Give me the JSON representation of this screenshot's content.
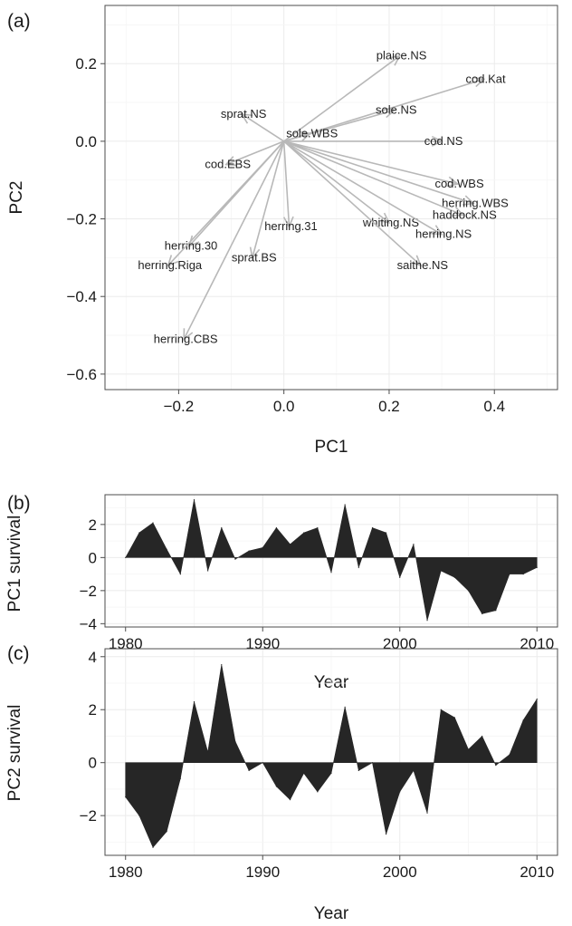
{
  "chart_data": [
    {
      "type": "biplot",
      "panel_label": "(a)",
      "xlabel": "PC1",
      "ylabel": "PC2",
      "xlim": [
        -0.34,
        0.52
      ],
      "ylim": [
        -0.64,
        0.35
      ],
      "xticks": [
        -0.2,
        0.0,
        0.2,
        0.4
      ],
      "xtick_labels": [
        "−0.2",
        "0.0",
        "0.2",
        "0.4"
      ],
      "yticks": [
        -0.6,
        -0.4,
        -0.2,
        0.0,
        0.2
      ],
      "ytick_labels": [
        "−0.6",
        "−0.4",
        "−0.2",
        "0.0",
        "0.2"
      ],
      "grid": true,
      "vectors": [
        {
          "name": "plaice.NS",
          "x": 0.22,
          "y": 0.22
        },
        {
          "name": "cod.Kat",
          "x": 0.38,
          "y": 0.16
        },
        {
          "name": "sole.NS",
          "x": 0.21,
          "y": 0.08
        },
        {
          "name": "sprat.NS",
          "x": -0.08,
          "y": 0.07
        },
        {
          "name": "sole.WBS",
          "x": 0.05,
          "y": 0.02
        },
        {
          "name": "cod.NS",
          "x": 0.3,
          "y": 0.0
        },
        {
          "name": "cod.EBS",
          "x": -0.11,
          "y": -0.06
        },
        {
          "name": "cod.WBS",
          "x": 0.33,
          "y": -0.11
        },
        {
          "name": "herring.WBS",
          "x": 0.36,
          "y": -0.16
        },
        {
          "name": "haddock.NS",
          "x": 0.34,
          "y": -0.19
        },
        {
          "name": "whiting.NS",
          "x": 0.2,
          "y": -0.21
        },
        {
          "name": "herring.NS",
          "x": 0.3,
          "y": -0.24
        },
        {
          "name": "herring.31",
          "x": 0.01,
          "y": -0.22
        },
        {
          "name": "saithe.NS",
          "x": 0.26,
          "y": -0.32
        },
        {
          "name": "herring.30",
          "x": -0.18,
          "y": -0.27
        },
        {
          "name": "herring.Riga",
          "x": -0.22,
          "y": -0.32
        },
        {
          "name": "sprat.BS",
          "x": -0.06,
          "y": -0.3
        },
        {
          "name": "herring.CBS",
          "x": -0.19,
          "y": -0.51
        }
      ]
    },
    {
      "type": "area",
      "panel_label": "(b)",
      "xlabel": "Year",
      "ylabel": "PC1  survival",
      "xlim": [
        1978.5,
        2011.5
      ],
      "ylim": [
        -4.2,
        3.8
      ],
      "xticks": [
        1980,
        1990,
        2000,
        2010
      ],
      "yticks": [
        -4,
        -2,
        0,
        2
      ],
      "ytick_labels": [
        "−4",
        "−2",
        "0",
        "2"
      ],
      "grid": true,
      "x": [
        1980,
        1981,
        1982,
        1983,
        1984,
        1985,
        1986,
        1987,
        1988,
        1989,
        1990,
        1991,
        1992,
        1993,
        1994,
        1995,
        1996,
        1997,
        1998,
        1999,
        2000,
        2001,
        2002,
        2003,
        2004,
        2005,
        2006,
        2007,
        2008,
        2009,
        2010
      ],
      "values": [
        0.0,
        1.5,
        2.1,
        0.5,
        -1.0,
        3.5,
        -0.8,
        1.8,
        -0.1,
        0.4,
        0.6,
        1.8,
        0.8,
        1.5,
        1.8,
        -0.9,
        3.2,
        -0.6,
        1.8,
        1.5,
        -1.2,
        0.8,
        -3.8,
        -0.8,
        -1.2,
        -2.0,
        -3.4,
        -3.2,
        -1.0,
        -1.0,
        -0.6
      ]
    },
    {
      "type": "area",
      "panel_label": "(c)",
      "xlabel": "Year",
      "ylabel": "PC2  survival",
      "xlim": [
        1978.5,
        2011.5
      ],
      "ylim": [
        -3.5,
        4.3
      ],
      "xticks": [
        1980,
        1990,
        2000,
        2010
      ],
      "yticks": [
        -2,
        0,
        2,
        4
      ],
      "ytick_labels": [
        "−2",
        "0",
        "2",
        "4"
      ],
      "grid": true,
      "x": [
        1980,
        1981,
        1982,
        1983,
        1984,
        1985,
        1986,
        1987,
        1988,
        1989,
        1990,
        1991,
        1992,
        1993,
        1994,
        1995,
        1996,
        1997,
        1998,
        1999,
        2000,
        2001,
        2002,
        2003,
        2004,
        2005,
        2006,
        2007,
        2008,
        2009,
        2010
      ],
      "values": [
        -1.3,
        -2.0,
        -3.2,
        -2.6,
        -0.6,
        2.3,
        0.4,
        3.7,
        0.8,
        -0.3,
        0.0,
        -0.9,
        -1.4,
        -0.4,
        -1.1,
        -0.4,
        2.1,
        -0.3,
        0.0,
        -2.7,
        -1.1,
        -0.3,
        -1.9,
        2.0,
        1.7,
        0.5,
        1.0,
        -0.1,
        0.3,
        1.6,
        2.4
      ]
    }
  ]
}
